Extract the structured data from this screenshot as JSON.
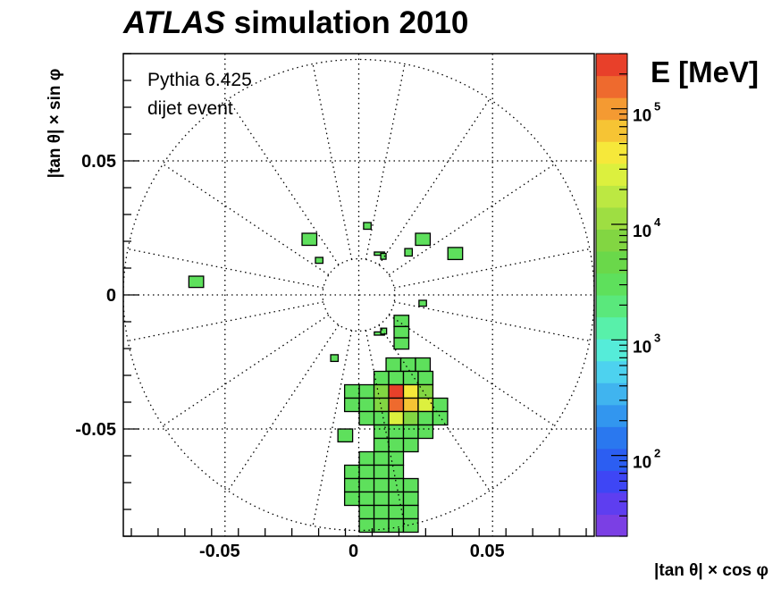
{
  "title_part1": "ATLAS",
  "title_part2": " simulation 2010",
  "annotation_line1": "Pythia 6.425",
  "annotation_line2": "dijet event",
  "chart_data": {
    "type": "heatmap",
    "xlabel": "|tan θ| × cos φ",
    "ylabel": "|tan θ| × sin φ",
    "xlim": [
      -0.088,
      0.088
    ],
    "ylim": [
      -0.09,
      0.09
    ],
    "x_ticks": [
      {
        "v": -0.05,
        "label": "-0.05"
      },
      {
        "v": 0,
        "label": "0"
      },
      {
        "v": 0.05,
        "label": "0.05"
      }
    ],
    "y_ticks": [
      {
        "v": 0.05,
        "label": "0.05"
      },
      {
        "v": 0,
        "label": "0"
      },
      {
        "v": -0.05,
        "label": "-0.05"
      }
    ],
    "grid": "dotted polar",
    "colorbar": {
      "label": "E [MeV]",
      "scale": "log",
      "range": [
        20,
        300000
      ],
      "ticks": [
        {
          "v": 100,
          "label": "10"
        },
        {
          "v": 1000,
          "label": "10"
        },
        {
          "v": 10000,
          "label": "10"
        },
        {
          "v": 100000,
          "label": "10"
        }
      ],
      "tick_exponents": [
        "2",
        "3",
        "4",
        "5"
      ],
      "colors": [
        "#7b3fe4",
        "#5e3ef0",
        "#3e46f5",
        "#2c5ef2",
        "#2a78ef",
        "#3296ef",
        "#40b4ef",
        "#4dd2ef",
        "#55ecd9",
        "#58f0aa",
        "#5ae87c",
        "#5ee05c",
        "#6ad84a",
        "#82d642",
        "#9ede42",
        "#bce842",
        "#dcf03e",
        "#f6e83a",
        "#f6c434",
        "#f49a32",
        "#ee6a2e",
        "#e8402a"
      ]
    },
    "cells": [
      {
        "x": -0.0635,
        "y": 0.0028,
        "w": 0.0055,
        "h": 0.0042,
        "e": 3000
      },
      {
        "x": -0.0212,
        "y": 0.0185,
        "w": 0.0055,
        "h": 0.0045,
        "e": 3000
      },
      {
        "x": -0.0162,
        "y": 0.0118,
        "w": 0.0028,
        "h": 0.0022,
        "e": 3000
      },
      {
        "x": 0.0018,
        "y": 0.0245,
        "w": 0.0028,
        "h": 0.0025,
        "e": 3000
      },
      {
        "x": 0.0058,
        "y": 0.0148,
        "w": 0.0038,
        "h": 0.0012,
        "e": 3000
      },
      {
        "x": 0.0082,
        "y": 0.0133,
        "w": 0.002,
        "h": 0.0022,
        "e": 3000
      },
      {
        "x": 0.0172,
        "y": 0.0145,
        "w": 0.0028,
        "h": 0.0028,
        "e": 3000
      },
      {
        "x": 0.0212,
        "y": 0.0185,
        "w": 0.0055,
        "h": 0.0045,
        "e": 3000
      },
      {
        "x": 0.0333,
        "y": 0.0132,
        "w": 0.0055,
        "h": 0.0045,
        "e": 3000
      },
      {
        "x": 0.0225,
        "y": -0.0042,
        "w": 0.0028,
        "h": 0.0022,
        "e": 3000
      },
      {
        "x": -0.0105,
        "y": -0.0248,
        "w": 0.0028,
        "h": 0.0025,
        "e": 3000
      },
      {
        "x": -0.0078,
        "y": -0.0548,
        "w": 0.0055,
        "h": 0.0048,
        "e": 3000
      },
      {
        "x": 0.0058,
        "y": -0.015,
        "w": 0.0038,
        "h": 0.0012,
        "e": 3000
      },
      {
        "x": 0.0082,
        "y": -0.0146,
        "w": 0.0022,
        "h": 0.0022,
        "e": 3000
      },
      {
        "x": 0.0132,
        "y": -0.0118,
        "w": 0.0055,
        "h": 0.0042,
        "e": 3000
      },
      {
        "x": 0.0132,
        "y": -0.016,
        "w": 0.0055,
        "h": 0.0042,
        "e": 3000
      },
      {
        "x": 0.0132,
        "y": -0.0202,
        "w": 0.0055,
        "h": 0.0042,
        "e": 3000
      },
      {
        "x": 0.0102,
        "y": -0.0285,
        "w": 0.0055,
        "h": 0.005,
        "e": 3000
      },
      {
        "x": 0.0157,
        "y": -0.0285,
        "w": 0.0055,
        "h": 0.005,
        "e": 3000
      },
      {
        "x": 0.0212,
        "y": -0.0285,
        "w": 0.0055,
        "h": 0.005,
        "e": 3000
      },
      {
        "x": 0.0057,
        "y": -0.0335,
        "w": 0.0055,
        "h": 0.005,
        "e": 3000
      },
      {
        "x": 0.0112,
        "y": -0.0335,
        "w": 0.0055,
        "h": 0.005,
        "e": 3000
      },
      {
        "x": 0.0167,
        "y": -0.0335,
        "w": 0.0055,
        "h": 0.005,
        "e": 3000
      },
      {
        "x": 0.0222,
        "y": -0.0335,
        "w": 0.0055,
        "h": 0.005,
        "e": 3000
      },
      {
        "x": -0.0053,
        "y": -0.0385,
        "w": 0.0055,
        "h": 0.005,
        "e": 3000
      },
      {
        "x": 0.0002,
        "y": -0.0385,
        "w": 0.0055,
        "h": 0.005,
        "e": 3000
      },
      {
        "x": 0.0057,
        "y": -0.0385,
        "w": 0.0055,
        "h": 0.005,
        "e": 9000
      },
      {
        "x": 0.0112,
        "y": -0.0385,
        "w": 0.0055,
        "h": 0.005,
        "e": 220000
      },
      {
        "x": 0.0167,
        "y": -0.0385,
        "w": 0.0055,
        "h": 0.005,
        "e": 45000
      },
      {
        "x": 0.0222,
        "y": -0.0385,
        "w": 0.0055,
        "h": 0.005,
        "e": 8000
      },
      {
        "x": -0.0053,
        "y": -0.0435,
        "w": 0.0055,
        "h": 0.005,
        "e": 3000
      },
      {
        "x": 0.0002,
        "y": -0.0435,
        "w": 0.0055,
        "h": 0.005,
        "e": 3000
      },
      {
        "x": 0.0057,
        "y": -0.0435,
        "w": 0.0055,
        "h": 0.005,
        "e": 9000
      },
      {
        "x": 0.0112,
        "y": -0.0435,
        "w": 0.0055,
        "h": 0.005,
        "e": 150000
      },
      {
        "x": 0.0167,
        "y": -0.0435,
        "w": 0.0055,
        "h": 0.005,
        "e": 60000
      },
      {
        "x": 0.0222,
        "y": -0.0435,
        "w": 0.0055,
        "h": 0.005,
        "e": 25000
      },
      {
        "x": 0.0277,
        "y": -0.0435,
        "w": 0.0055,
        "h": 0.005,
        "e": 3000
      },
      {
        "x": 0.0002,
        "y": -0.0485,
        "w": 0.0055,
        "h": 0.005,
        "e": 3000
      },
      {
        "x": 0.0057,
        "y": -0.0485,
        "w": 0.0055,
        "h": 0.005,
        "e": 3000
      },
      {
        "x": 0.0112,
        "y": -0.0485,
        "w": 0.0055,
        "h": 0.005,
        "e": 30000
      },
      {
        "x": 0.0167,
        "y": -0.0485,
        "w": 0.0055,
        "h": 0.005,
        "e": 6000
      },
      {
        "x": 0.0222,
        "y": -0.0485,
        "w": 0.0055,
        "h": 0.005,
        "e": 3000
      },
      {
        "x": 0.0277,
        "y": -0.0485,
        "w": 0.0055,
        "h": 0.005,
        "e": 3000
      },
      {
        "x": 0.0057,
        "y": -0.0535,
        "w": 0.0055,
        "h": 0.005,
        "e": 3000
      },
      {
        "x": 0.0112,
        "y": -0.0535,
        "w": 0.0055,
        "h": 0.005,
        "e": 3000
      },
      {
        "x": 0.0167,
        "y": -0.0535,
        "w": 0.0055,
        "h": 0.005,
        "e": 3000
      },
      {
        "x": 0.0222,
        "y": -0.0535,
        "w": 0.0055,
        "h": 0.005,
        "e": 3000
      },
      {
        "x": 0.0057,
        "y": -0.0585,
        "w": 0.0055,
        "h": 0.005,
        "e": 3000
      },
      {
        "x": 0.0112,
        "y": -0.0585,
        "w": 0.0055,
        "h": 0.005,
        "e": 3000
      },
      {
        "x": 0.0167,
        "y": -0.0585,
        "w": 0.0055,
        "h": 0.005,
        "e": 3000
      },
      {
        "x": 0.0002,
        "y": -0.0635,
        "w": 0.0055,
        "h": 0.005,
        "e": 3000
      },
      {
        "x": 0.0057,
        "y": -0.0635,
        "w": 0.0055,
        "h": 0.005,
        "e": 3000
      },
      {
        "x": 0.0112,
        "y": -0.0635,
        "w": 0.0055,
        "h": 0.005,
        "e": 3000
      },
      {
        "x": -0.0053,
        "y": -0.0685,
        "w": 0.0055,
        "h": 0.005,
        "e": 3000
      },
      {
        "x": 0.0002,
        "y": -0.0685,
        "w": 0.0055,
        "h": 0.005,
        "e": 3000
      },
      {
        "x": 0.0057,
        "y": -0.0685,
        "w": 0.0055,
        "h": 0.005,
        "e": 3000
      },
      {
        "x": 0.0112,
        "y": -0.0685,
        "w": 0.0055,
        "h": 0.005,
        "e": 3000
      },
      {
        "x": -0.0053,
        "y": -0.0735,
        "w": 0.0055,
        "h": 0.005,
        "e": 3000
      },
      {
        "x": 0.0002,
        "y": -0.0735,
        "w": 0.0055,
        "h": 0.005,
        "e": 3000
      },
      {
        "x": 0.0057,
        "y": -0.0735,
        "w": 0.0055,
        "h": 0.005,
        "e": 3000
      },
      {
        "x": 0.0112,
        "y": -0.0735,
        "w": 0.0055,
        "h": 0.005,
        "e": 3000
      },
      {
        "x": 0.0167,
        "y": -0.0735,
        "w": 0.0055,
        "h": 0.005,
        "e": 3000
      },
      {
        "x": -0.0053,
        "y": -0.0785,
        "w": 0.0055,
        "h": 0.005,
        "e": 3000
      },
      {
        "x": 0.0002,
        "y": -0.0785,
        "w": 0.0055,
        "h": 0.005,
        "e": 3000
      },
      {
        "x": 0.0057,
        "y": -0.0785,
        "w": 0.0055,
        "h": 0.005,
        "e": 3000
      },
      {
        "x": 0.0112,
        "y": -0.0785,
        "w": 0.0055,
        "h": 0.005,
        "e": 3000
      },
      {
        "x": 0.0167,
        "y": -0.0785,
        "w": 0.0055,
        "h": 0.005,
        "e": 3000
      },
      {
        "x": 0.0002,
        "y": -0.0835,
        "w": 0.0055,
        "h": 0.005,
        "e": 3000
      },
      {
        "x": 0.0057,
        "y": -0.0835,
        "w": 0.0055,
        "h": 0.005,
        "e": 3000
      },
      {
        "x": 0.0112,
        "y": -0.0835,
        "w": 0.0055,
        "h": 0.005,
        "e": 3000
      },
      {
        "x": 0.0167,
        "y": -0.0835,
        "w": 0.0055,
        "h": 0.005,
        "e": 3000
      },
      {
        "x": 0.0002,
        "y": -0.0885,
        "w": 0.0055,
        "h": 0.005,
        "e": 3000
      },
      {
        "x": 0.0057,
        "y": -0.0885,
        "w": 0.0055,
        "h": 0.005,
        "e": 3000
      },
      {
        "x": 0.0112,
        "y": -0.0885,
        "w": 0.0055,
        "h": 0.005,
        "e": 3000
      },
      {
        "x": 0.0167,
        "y": -0.0885,
        "w": 0.0055,
        "h": 0.005,
        "e": 3000
      }
    ]
  }
}
